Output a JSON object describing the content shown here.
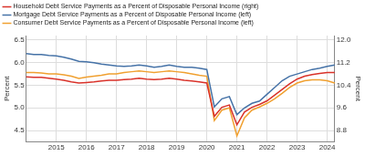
{
  "chart_data": {
    "type": "line",
    "y_label": "Percent",
    "y2_label": "Percent",
    "categories": [
      null,
      null,
      null,
      null,
      "2015",
      null,
      null,
      null,
      "2016",
      null,
      null,
      null,
      "2017",
      null,
      null,
      null,
      "2018",
      null,
      null,
      null,
      "2019",
      null,
      null,
      null,
      "2020",
      null,
      null,
      null,
      "2021",
      null,
      null,
      null,
      "2022",
      null,
      null,
      null,
      "2023",
      null,
      null,
      null,
      "2024",
      null
    ],
    "series": [
      {
        "name": "Household Debt Service Payments as a Percent of Disposable Personal Income (right)",
        "color": "#d9322a",
        "axis": "y2",
        "values": [
          10.7,
          10.68,
          10.68,
          10.65,
          10.62,
          10.58,
          10.52,
          10.48,
          10.5,
          10.52,
          10.55,
          10.58,
          10.58,
          10.6,
          10.62,
          10.65,
          10.62,
          10.6,
          10.62,
          10.65,
          10.62,
          10.58,
          10.55,
          10.52,
          10.48,
          9.3,
          9.62,
          9.7,
          9.0,
          9.45,
          9.62,
          9.72,
          9.85,
          10.05,
          10.25,
          10.45,
          10.62,
          10.72,
          10.78,
          10.82,
          10.85,
          10.85
        ]
      },
      {
        "name": "Mortgage Debt Service Payments as a Percent of Disposable Personal Income (left)",
        "color": "#4572a7",
        "axis": "y",
        "values": [
          6.2,
          6.18,
          6.18,
          6.16,
          6.15,
          6.12,
          6.08,
          6.03,
          6.02,
          6.0,
          5.97,
          5.95,
          5.93,
          5.92,
          5.93,
          5.95,
          5.93,
          5.9,
          5.92,
          5.95,
          5.92,
          5.9,
          5.9,
          5.88,
          5.85,
          5.02,
          5.2,
          5.25,
          4.85,
          5.0,
          5.1,
          5.15,
          5.3,
          5.45,
          5.6,
          5.7,
          5.75,
          5.8,
          5.85,
          5.88,
          5.92,
          5.95
        ]
      },
      {
        "name": "Consumer Debt Service Payments as a Percent of Disposable Personal Income (left)",
        "color": "#f0a030",
        "axis": "y",
        "values": [
          5.78,
          5.78,
          5.77,
          5.75,
          5.75,
          5.73,
          5.7,
          5.65,
          5.68,
          5.7,
          5.72,
          5.75,
          5.75,
          5.78,
          5.8,
          5.82,
          5.8,
          5.78,
          5.8,
          5.82,
          5.8,
          5.78,
          5.75,
          5.72,
          5.7,
          4.72,
          4.95,
          5.0,
          4.38,
          4.78,
          4.95,
          5.02,
          5.1,
          5.2,
          5.32,
          5.45,
          5.55,
          5.6,
          5.62,
          5.62,
          5.6,
          5.55
        ]
      }
    ],
    "ylim": [
      4.25,
      6.6
    ],
    "yticks": [
      4.5,
      {
        "value": 5,
        "label": "5.0"
      },
      5.5,
      {
        "value": 6,
        "label": "6.0"
      },
      6.5
    ],
    "y2lim": [
      8.4,
      12.16
    ],
    "y2ticks": [
      8.8,
      9.6,
      10.4,
      11.2,
      {
        "value": 12,
        "label": "12.0"
      }
    ],
    "grid": true,
    "legend": "top-left"
  }
}
